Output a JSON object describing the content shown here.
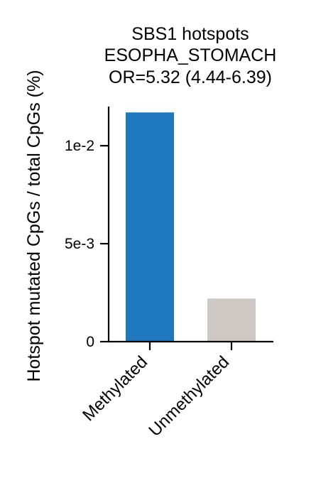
{
  "chart_data": {
    "type": "bar",
    "title_lines": [
      "SBS1 hotspots",
      "ESOPHA_STOMACH",
      "OR=5.32 (4.44-6.39)"
    ],
    "xlabel": "",
    "ylabel": "Hotspot mutated CpGs / total CpGs (%)",
    "categories": [
      "Methylated",
      "Unmethylated"
    ],
    "values": [
      0.0117,
      0.0022
    ],
    "colors": [
      "#1f77bd",
      "#cdc8c4"
    ],
    "ylim": [
      0,
      0.012
    ],
    "yticks": [
      {
        "value": 0,
        "label": "0"
      },
      {
        "value": 0.005,
        "label": "5e-3"
      },
      {
        "value": 0.01,
        "label": "1e-2"
      }
    ],
    "grid": false,
    "legend": "none"
  }
}
